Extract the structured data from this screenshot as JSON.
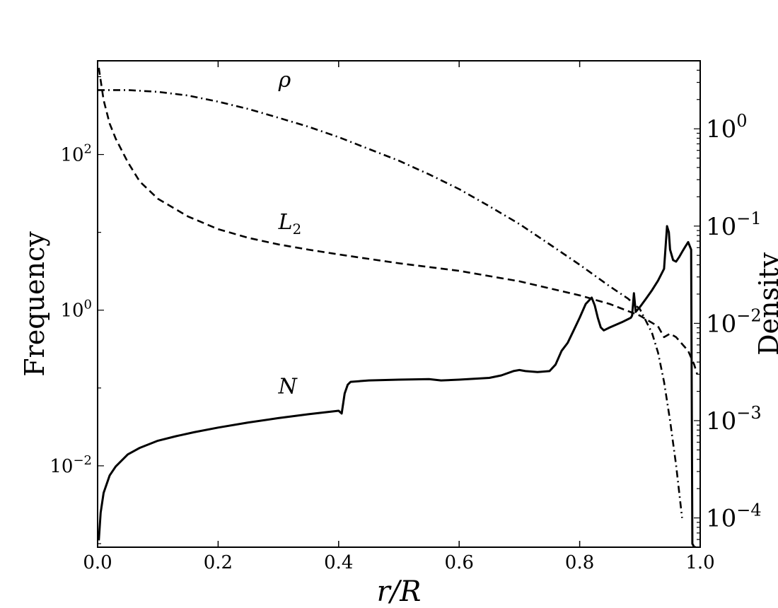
{
  "chart_data": {
    "type": "line",
    "xlabel": "r/R",
    "ylabel_left": "Frequency",
    "ylabel_right": "Density",
    "xlim": [
      0.0,
      1.0
    ],
    "ylim_left": [
      0.0009,
      1600
    ],
    "ylim_right": [
      5e-05,
      5
    ],
    "yscale_left": "log",
    "yscale_right": "log",
    "grid": false,
    "x_ticks": [
      0.0,
      0.2,
      0.4,
      0.6,
      0.8,
      1.0
    ],
    "x_tick_labels": [
      "0.0",
      "0.2",
      "0.4",
      "0.6",
      "0.8",
      "1.0"
    ],
    "y_left_ticks": [
      0.01,
      1,
      100
    ],
    "y_left_tick_labels": [
      {
        "base": "10",
        "exp": "−2"
      },
      {
        "base": "10",
        "exp": "0"
      },
      {
        "base": "10",
        "exp": "2"
      }
    ],
    "y_right_ticks": [
      0.0001,
      0.001,
      0.01,
      0.1,
      1
    ],
    "y_right_tick_labels": [
      {
        "base": "10",
        "exp": "−4"
      },
      {
        "base": "10",
        "exp": "−3"
      },
      {
        "base": "10",
        "exp": "−2"
      },
      {
        "base": "10",
        "exp": "−1"
      },
      {
        "base": "10",
        "exp": "0"
      }
    ],
    "series": [
      {
        "name": "N",
        "axis": "left",
        "style": "solid",
        "x": [
          0.002,
          0.005,
          0.01,
          0.02,
          0.03,
          0.05,
          0.07,
          0.1,
          0.13,
          0.16,
          0.2,
          0.25,
          0.3,
          0.35,
          0.4,
          0.405,
          0.41,
          0.415,
          0.42,
          0.45,
          0.5,
          0.55,
          0.57,
          0.6,
          0.65,
          0.67,
          0.69,
          0.7,
          0.71,
          0.73,
          0.75,
          0.76,
          0.77,
          0.78,
          0.79,
          0.8,
          0.81,
          0.82,
          0.825,
          0.83,
          0.835,
          0.84,
          0.85,
          0.87,
          0.885,
          0.887,
          0.89,
          0.893,
          0.9,
          0.91,
          0.92,
          0.93,
          0.94,
          0.945,
          0.948,
          0.95,
          0.955,
          0.96,
          0.965,
          0.97,
          0.975,
          0.98,
          0.985,
          0.987,
          0.99,
          0.993
        ],
        "y": [
          0.0011,
          0.0025,
          0.0045,
          0.0075,
          0.0098,
          0.014,
          0.017,
          0.021,
          0.024,
          0.027,
          0.031,
          0.036,
          0.041,
          0.046,
          0.051,
          0.047,
          0.085,
          0.11,
          0.12,
          0.125,
          0.128,
          0.13,
          0.125,
          0.128,
          0.135,
          0.145,
          0.165,
          0.17,
          0.165,
          0.16,
          0.165,
          0.2,
          0.3,
          0.38,
          0.55,
          0.8,
          1.2,
          1.45,
          1.15,
          0.8,
          0.6,
          0.55,
          0.6,
          0.7,
          0.8,
          0.85,
          1.65,
          0.95,
          1.1,
          1.4,
          1.8,
          2.4,
          3.4,
          12,
          10,
          6,
          4.4,
          4.2,
          4.8,
          5.6,
          6.5,
          7.5,
          6,
          0.001,
          0.0009,
          0.0009
        ]
      },
      {
        "name": "L₂",
        "axis": "left",
        "style": "dashed",
        "x": [
          0.002,
          0.005,
          0.01,
          0.02,
          0.03,
          0.05,
          0.07,
          0.1,
          0.15,
          0.2,
          0.25,
          0.3,
          0.35,
          0.4,
          0.5,
          0.6,
          0.7,
          0.8,
          0.85,
          0.9,
          0.93,
          0.94,
          0.95,
          0.96,
          0.98,
          0.99,
          0.995
        ],
        "y": [
          1300,
          900,
          500,
          250,
          160,
          80,
          45,
          27,
          16,
          11,
          8.5,
          7,
          6,
          5.2,
          4,
          3.2,
          2.35,
          1.55,
          1.2,
          0.85,
          0.62,
          0.45,
          0.5,
          0.45,
          0.3,
          0.2,
          0.15
        ]
      },
      {
        "name": "ρ",
        "axis": "right",
        "style": "dashdot",
        "x": [
          0.0,
          0.05,
          0.1,
          0.15,
          0.2,
          0.25,
          0.3,
          0.35,
          0.4,
          0.45,
          0.5,
          0.55,
          0.6,
          0.65,
          0.7,
          0.75,
          0.8,
          0.85,
          0.88,
          0.9,
          0.92,
          0.93,
          0.94,
          0.95,
          0.96,
          0.97
        ],
        "y": [
          2.5,
          2.5,
          2.4,
          2.2,
          1.9,
          1.6,
          1.3,
          1.05,
          0.82,
          0.62,
          0.47,
          0.34,
          0.24,
          0.16,
          0.105,
          0.065,
          0.04,
          0.024,
          0.018,
          0.014,
          0.008,
          0.005,
          0.0025,
          0.001,
          0.00035,
          0.0001
        ]
      }
    ],
    "annotations": [
      {
        "text": "ρ",
        "x": 0.3,
        "y_axis": "right",
        "y": 2.7
      },
      {
        "text": "L",
        "sub": "2",
        "x": 0.3,
        "y_axis": "left",
        "y": 11
      },
      {
        "text": "N",
        "x": 0.3,
        "y_axis": "left",
        "y": 0.085
      }
    ]
  }
}
